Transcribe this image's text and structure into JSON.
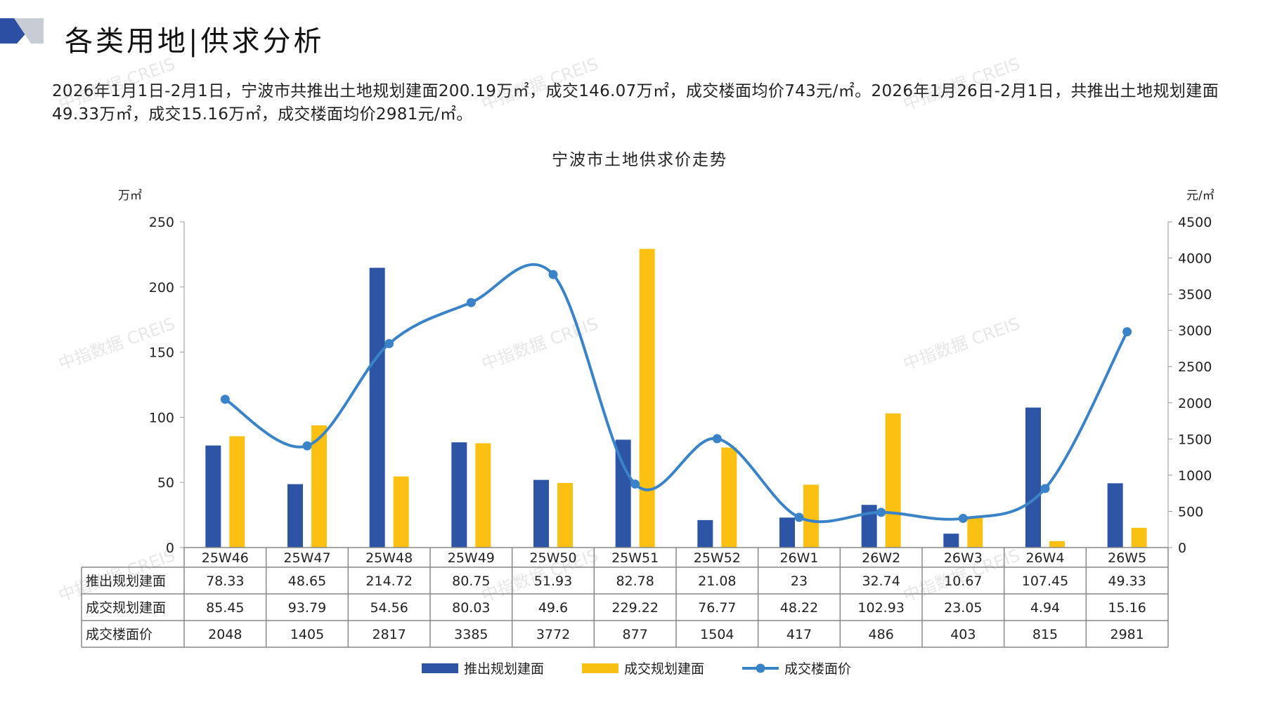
{
  "header": {
    "title": "各类用地|供求分析",
    "logo_colors": [
      "#2d4fa3",
      "#8c9ab8",
      "#c8ccd4"
    ]
  },
  "summary": "2026年1月1日-2月1日，宁波市共推出土地规划建面200.19万㎡，成交146.07万㎡，成交楼面均价743元/㎡。2026年1月26日-2月1日，共推出土地规划建面49.33万㎡，成交15.16万㎡，成交楼面均价2981元/㎡。",
  "watermark": "中指数据 CREIS",
  "chart_data": {
    "type": "bar",
    "title": "宁波市土地供求价走势",
    "ylabel_left": "万㎡",
    "ylabel_right": "元/㎡",
    "ylim_left": [
      0,
      250
    ],
    "yticks_left": [
      0,
      50,
      100,
      150,
      200,
      250
    ],
    "ylim_right": [
      0,
      4500
    ],
    "yticks_right": [
      0,
      500,
      1000,
      1500,
      2000,
      2500,
      3000,
      3500,
      4000,
      4500
    ],
    "categories": [
      "25W46",
      "25W47",
      "25W48",
      "25W49",
      "25W50",
      "25W51",
      "25W52",
      "26W1",
      "26W2",
      "26W3",
      "26W4",
      "26W5"
    ],
    "series": [
      {
        "name": "推出规划建面",
        "type": "bar",
        "axis": "left",
        "color": "#2e55a5",
        "values": [
          78.33,
          48.65,
          214.72,
          80.75,
          51.93,
          82.78,
          21.08,
          23,
          32.74,
          10.67,
          107.45,
          49.33
        ],
        "labels": [
          "78.33",
          "48.65",
          "214.72",
          "80.75",
          "51.93",
          "82.78",
          "21.08",
          "23",
          "32.74",
          "10.67",
          "107.45",
          "49.33"
        ]
      },
      {
        "name": "成交规划建面",
        "type": "bar",
        "axis": "left",
        "color": "#fcc012",
        "values": [
          85.45,
          93.79,
          54.56,
          80.03,
          49.6,
          229.22,
          76.77,
          48.22,
          102.93,
          23.05,
          4.94,
          15.16
        ],
        "labels": [
          "85.45",
          "93.79",
          "54.56",
          "80.03",
          "49.6",
          "229.22",
          "76.77",
          "48.22",
          "102.93",
          "23.05",
          "4.94",
          "15.16"
        ]
      },
      {
        "name": "成交楼面价",
        "type": "line",
        "axis": "right",
        "color": "#3b83c8",
        "values": [
          2048,
          1405,
          2817,
          3385,
          3772,
          877,
          1504,
          417,
          486,
          403,
          815,
          2981
        ],
        "labels": [
          "2048",
          "1405",
          "2817",
          "3385",
          "3772",
          "877",
          "1504",
          "417",
          "486",
          "403",
          "815",
          "2981"
        ]
      }
    ],
    "legend_position": "bottom",
    "grid": false
  }
}
